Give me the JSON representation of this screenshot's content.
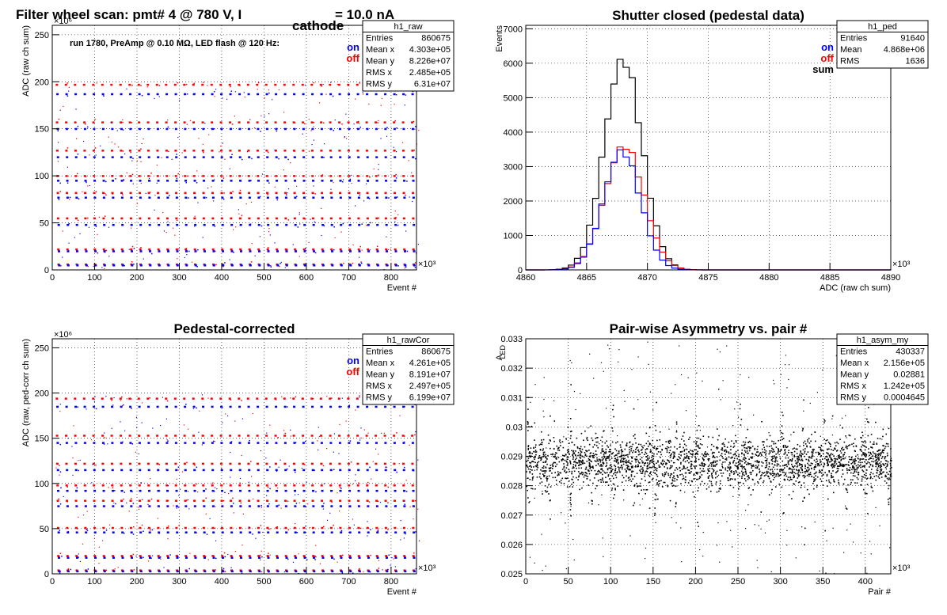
{
  "chart_data": [
    {
      "type": "scatter",
      "title": "Filter wheel scan: pmt#   4 @   780 V, I",
      "title_sub": "cathode",
      "title_tail": "= 10.0 nA",
      "annotation": "run 1780, PreAmp @ 0.10 MΩ, LED flash @  120 Hz:",
      "xlabel": "Event #",
      "ylabel": "ADC (raw ch sum)",
      "xlim": [
        0,
        860
      ],
      "ylim": [
        0,
        260
      ],
      "xticks": [
        0,
        100,
        200,
        300,
        400,
        500,
        600,
        700,
        800
      ],
      "yticks": [
        0,
        50,
        100,
        150,
        200,
        250
      ],
      "x_multiplier": "×10³",
      "y_multiplier": "×10⁶",
      "grid": true,
      "legend": {
        "position": "top-right",
        "entries": [
          {
            "label": "on",
            "color": "#0000ff"
          },
          {
            "label": "off",
            "color": "#ff0000"
          }
        ]
      },
      "stats": {
        "name": "h1_raw",
        "rows": [
          [
            "Entries",
            "860675"
          ],
          [
            "Mean x",
            "4.303e+05"
          ],
          [
            "Mean y",
            "8.226e+07"
          ],
          [
            "RMS x",
            "2.485e+05"
          ],
          [
            "RMS y",
            "6.31e+07"
          ]
        ]
      },
      "levels": {
        "on": [
          187,
          150,
          120,
          95,
          77,
          48,
          20,
          5
        ],
        "off": [
          197,
          157,
          127,
          100,
          82,
          55,
          22,
          6
        ]
      },
      "series": [
        {
          "name": "on",
          "color": "#0000ff"
        },
        {
          "name": "off",
          "color": "#ff0000"
        }
      ]
    },
    {
      "type": "histogram",
      "title": "Shutter closed (pedestal data)",
      "xlabel": "ADC (raw ch sum)",
      "ylabel": "Events",
      "xlim": [
        4860,
        4890
      ],
      "ylim": [
        0,
        7100
      ],
      "xticks": [
        4860,
        4865,
        4870,
        4875,
        4880,
        4885,
        4890
      ],
      "yticks": [
        0,
        1000,
        2000,
        3000,
        4000,
        5000,
        6000,
        7000
      ],
      "x_multiplier": "×10³",
      "grid": true,
      "legend": {
        "position": "top-right",
        "entries": [
          {
            "label": "on",
            "color": "#0000ff"
          },
          {
            "label": "off",
            "color": "#ff0000"
          },
          {
            "label": "sum",
            "color": "#000000"
          }
        ]
      },
      "stats": {
        "name": "h1_ped",
        "rows": [
          [
            "Entries",
            "91640"
          ],
          [
            "Mean",
            "4.868e+06"
          ],
          [
            "RMS",
            "1636"
          ]
        ]
      },
      "series": [
        {
          "name": "sum",
          "color": "#000000",
          "mean": 4868,
          "sigma": 1.55,
          "peak": 6100
        },
        {
          "name": "off",
          "color": "#ff0000",
          "mean": 4868.1,
          "sigma": 1.6,
          "peak": 3600
        },
        {
          "name": "on",
          "color": "#0000ff",
          "mean": 4867.9,
          "sigma": 1.5,
          "peak": 3450
        }
      ]
    },
    {
      "type": "scatter",
      "title": "Pedestal-corrected",
      "xlabel": "Event #",
      "ylabel": "ADC (raw, ped-corr ch sum)",
      "xlim": [
        0,
        860
      ],
      "ylim": [
        0,
        260
      ],
      "xticks": [
        0,
        100,
        200,
        300,
        400,
        500,
        600,
        700,
        800
      ],
      "yticks": [
        0,
        50,
        100,
        150,
        200,
        250
      ],
      "x_multiplier": "×10³",
      "y_multiplier": "×10⁶",
      "grid": true,
      "legend": {
        "position": "top-right",
        "entries": [
          {
            "label": "on",
            "color": "#0000ff"
          },
          {
            "label": "off",
            "color": "#ff0000"
          }
        ]
      },
      "stats": {
        "name": "h1_rawCor",
        "rows": [
          [
            "Entries",
            "860675"
          ],
          [
            "Mean x",
            "4.261e+05"
          ],
          [
            "Mean y",
            "8.191e+07"
          ],
          [
            "RMS x",
            "2.497e+05"
          ],
          [
            "RMS y",
            "6.199e+07"
          ]
        ]
      },
      "levels": {
        "on": [
          185,
          145,
          115,
          92,
          75,
          46,
          18,
          3
        ],
        "off": [
          194,
          153,
          122,
          98,
          81,
          51,
          20,
          4
        ]
      },
      "series": [
        {
          "name": "on",
          "color": "#0000ff"
        },
        {
          "name": "off",
          "color": "#ff0000"
        }
      ]
    },
    {
      "type": "scatter",
      "title": "Pair-wise Asymmetry vs. pair #",
      "xlabel": "Pair #",
      "ylabel": "A",
      "ylabel_sub": "LED",
      "xlim": [
        0,
        430
      ],
      "ylim": [
        0.025,
        0.033
      ],
      "xticks": [
        0,
        50,
        100,
        150,
        200,
        250,
        300,
        350,
        400
      ],
      "yticks": [
        0.025,
        0.026,
        0.027,
        0.028,
        0.029,
        0.03,
        0.031,
        0.032,
        0.033
      ],
      "ytick_labels": [
        "0.025",
        "0.026",
        "0.027",
        "0.028",
        "0.029",
        "0.03",
        "0.031",
        "0.032",
        "0.033"
      ],
      "x_multiplier": "×10³",
      "grid": true,
      "stats": {
        "name": "h1_asym_my",
        "rows": [
          [
            "Entries",
            "430337"
          ],
          [
            "Mean x",
            "2.156e+05"
          ],
          [
            "Mean y",
            "0.02881"
          ],
          [
            "RMS x",
            "1.242e+05"
          ],
          [
            "RMS y",
            "0.0004645"
          ]
        ]
      },
      "series": [
        {
          "name": "",
          "color": "#000000",
          "center": 0.02881,
          "spread": 0.00046
        }
      ]
    }
  ]
}
